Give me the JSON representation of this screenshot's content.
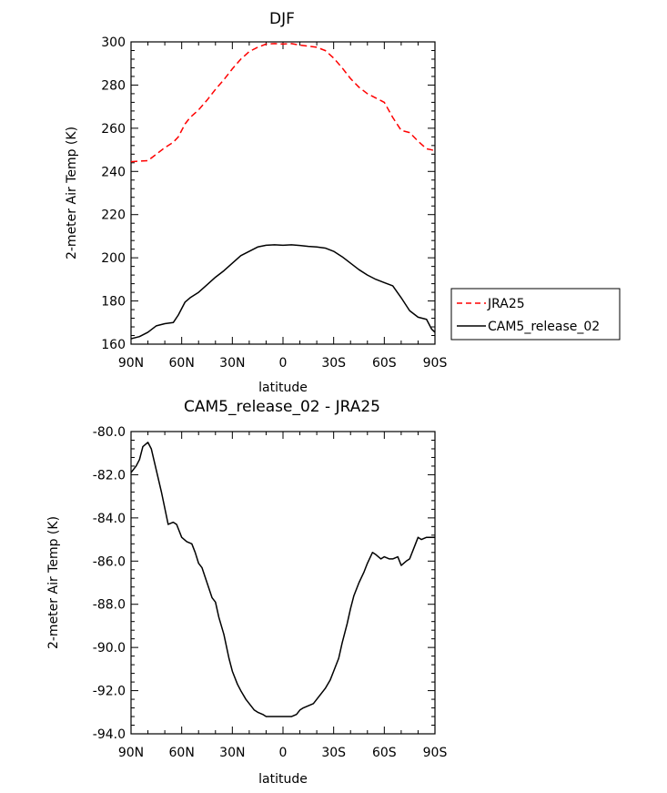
{
  "chart_data": [
    {
      "type": "line",
      "title": "DJF",
      "xlabel": "latitude",
      "ylabel": "2-meter Air Temp (K)",
      "xlim": [
        -90,
        90
      ],
      "ylim": [
        160,
        300
      ],
      "x_ticks": [
        {
          "value": -90,
          "label": "90N"
        },
        {
          "value": -60,
          "label": "60N"
        },
        {
          "value": -30,
          "label": "30N"
        },
        {
          "value": 0,
          "label": "0"
        },
        {
          "value": 30,
          "label": "30S"
        },
        {
          "value": 60,
          "label": "60S"
        },
        {
          "value": 90,
          "label": "90S"
        }
      ],
      "y_ticks": [
        {
          "value": 160,
          "label": "160"
        },
        {
          "value": 180,
          "label": "180"
        },
        {
          "value": 200,
          "label": "200"
        },
        {
          "value": 220,
          "label": "220"
        },
        {
          "value": 240,
          "label": "240"
        },
        {
          "value": 260,
          "label": "260"
        },
        {
          "value": 280,
          "label": "280"
        },
        {
          "value": 300,
          "label": "300"
        }
      ],
      "legend": "right",
      "series": [
        {
          "name": "JRA25",
          "color": "#ff0000",
          "dash": "dashed",
          "x": [
            -90,
            -80,
            -75,
            -70,
            -65,
            -62,
            -58,
            -55,
            -50,
            -45,
            -40,
            -35,
            -30,
            -25,
            -20,
            -15,
            -10,
            -5,
            0,
            5,
            10,
            15,
            20,
            25,
            30,
            35,
            40,
            45,
            50,
            55,
            60,
            65,
            70,
            75,
            80,
            85,
            88,
            90
          ],
          "values": [
            244.5,
            245,
            248,
            251,
            253.5,
            256,
            262,
            265,
            268.5,
            273,
            278,
            282.5,
            287.5,
            292,
            295.5,
            297.5,
            299,
            299.2,
            299,
            299.2,
            298.5,
            298,
            297.5,
            296,
            292.5,
            288,
            283,
            279,
            276,
            274,
            272,
            265,
            259,
            258,
            254,
            250.5,
            250,
            249.5
          ]
        },
        {
          "name": "CAM5_release_02",
          "color": "#000000",
          "dash": "solid",
          "x": [
            -90,
            -85,
            -80,
            -75,
            -70,
            -65,
            -62,
            -58,
            -55,
            -50,
            -45,
            -40,
            -35,
            -30,
            -25,
            -20,
            -15,
            -10,
            -5,
            0,
            5,
            10,
            15,
            20,
            25,
            30,
            35,
            40,
            45,
            50,
            55,
            60,
            65,
            70,
            75,
            80,
            85,
            88,
            90
          ],
          "values": [
            162.5,
            163.5,
            165.5,
            168.5,
            169.5,
            170,
            173.5,
            179.5,
            181.5,
            184,
            187.5,
            191,
            194,
            197.5,
            201,
            203,
            205,
            205.8,
            206,
            205.8,
            206,
            205.7,
            205.3,
            205,
            204.5,
            203,
            200.5,
            197.5,
            194.5,
            192,
            190,
            188.5,
            187,
            181.5,
            175.5,
            172.5,
            171.5,
            167,
            165.5
          ]
        }
      ]
    },
    {
      "type": "line",
      "title": "CAM5_release_02 - JRA25",
      "xlabel": "latitude",
      "ylabel": "2-meter Air Temp (K)",
      "xlim": [
        -90,
        90
      ],
      "ylim": [
        -94,
        -80
      ],
      "x_ticks": [
        {
          "value": -90,
          "label": "90N"
        },
        {
          "value": -60,
          "label": "60N"
        },
        {
          "value": -30,
          "label": "30N"
        },
        {
          "value": 0,
          "label": "0"
        },
        {
          "value": 30,
          "label": "30S"
        },
        {
          "value": 60,
          "label": "60S"
        },
        {
          "value": 90,
          "label": "90S"
        }
      ],
      "y_ticks": [
        {
          "value": -94,
          "label": "-94.0"
        },
        {
          "value": -92,
          "label": "-92.0"
        },
        {
          "value": -90,
          "label": "-90.0"
        },
        {
          "value": -88,
          "label": "-88.0"
        },
        {
          "value": -86,
          "label": "-86.0"
        },
        {
          "value": -84,
          "label": "-84.0"
        },
        {
          "value": -82,
          "label": "-82.0"
        },
        {
          "value": -80,
          "label": "-80.0"
        }
      ],
      "series": [
        {
          "name": "CAM5_release_02 - JRA25",
          "color": "#000000",
          "dash": "solid",
          "x": [
            -90,
            -87,
            -85,
            -83,
            -80,
            -78,
            -75,
            -72,
            -68,
            -65,
            -63,
            -60,
            -57,
            -54,
            -52,
            -50,
            -48,
            -45,
            -42,
            -40,
            -38,
            -35,
            -32,
            -30,
            -27,
            -25,
            -22,
            -20,
            -17,
            -15,
            -12,
            -10,
            -7,
            -5,
            -3,
            0,
            3,
            5,
            8,
            10,
            12,
            15,
            18,
            20,
            23,
            25,
            28,
            30,
            33,
            35,
            38,
            40,
            42,
            45,
            48,
            50,
            53,
            55,
            58,
            60,
            63,
            65,
            68,
            70,
            73,
            75,
            78,
            80,
            82,
            85,
            88,
            90
          ],
          "values": [
            -81.9,
            -81.6,
            -81.3,
            -80.7,
            -80.5,
            -80.8,
            -81.8,
            -82.8,
            -84.3,
            -84.2,
            -84.3,
            -84.9,
            -85.1,
            -85.2,
            -85.6,
            -86.1,
            -86.3,
            -87.0,
            -87.7,
            -87.9,
            -88.6,
            -89.4,
            -90.5,
            -91.1,
            -91.7,
            -92.0,
            -92.4,
            -92.6,
            -92.9,
            -93.0,
            -93.1,
            -93.2,
            -93.2,
            -93.2,
            -93.2,
            -93.2,
            -93.2,
            -93.2,
            -93.1,
            -92.9,
            -92.8,
            -92.7,
            -92.6,
            -92.4,
            -92.1,
            -91.9,
            -91.5,
            -91.1,
            -90.5,
            -89.8,
            -88.9,
            -88.2,
            -87.6,
            -87.0,
            -86.5,
            -86.1,
            -85.6,
            -85.7,
            -85.9,
            -85.8,
            -85.9,
            -85.9,
            -85.8,
            -86.2,
            -86.0,
            -85.9,
            -85.3,
            -84.9,
            -85.0,
            -84.9,
            -84.9,
            -84.9
          ]
        }
      ]
    }
  ]
}
